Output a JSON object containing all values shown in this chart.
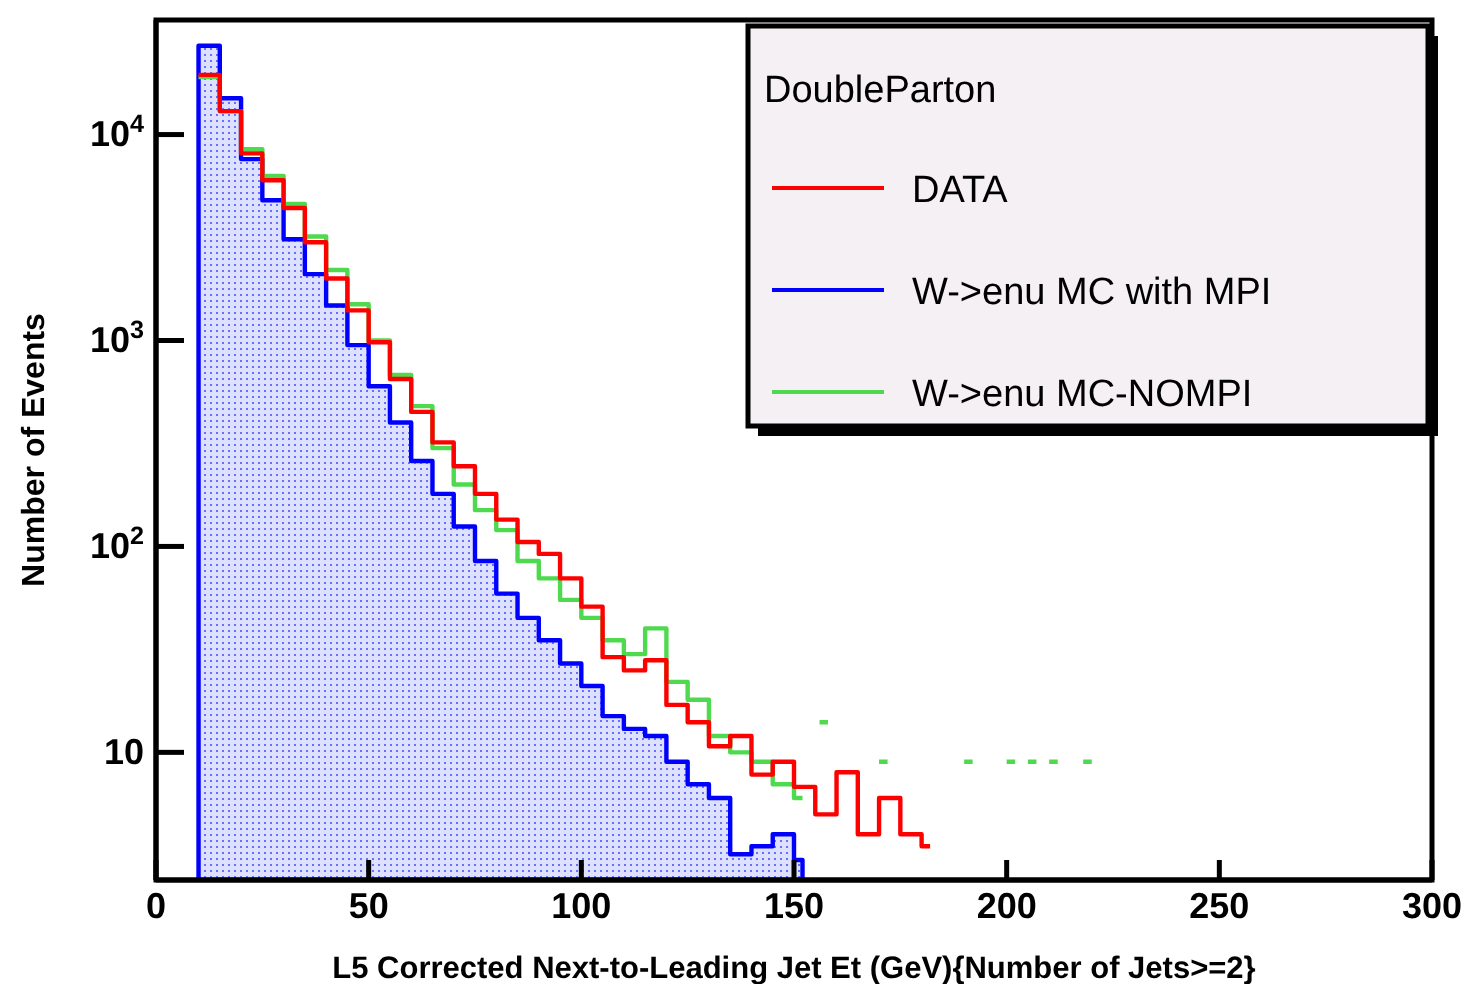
{
  "chart_data": {
    "type": "step",
    "xlabel": "L5 Corrected Next-to-Leading Jet Et (GeV){Number of Jets>=2}",
    "ylabel": "Number of Events",
    "legend_title": "DoubleParton",
    "log": "y",
    "xlim": [
      0,
      300
    ],
    "xticks": [
      0,
      50,
      100,
      150,
      200,
      250,
      300
    ],
    "ylim": [
      2.4,
      36000
    ],
    "yticks": [
      10,
      {
        "value": 100,
        "label": "10$^{2}$"
      },
      {
        "value": 1000,
        "label": "10$^{3}$"
      },
      {
        "value": 10000,
        "label": "10$^{4}$"
      }
    ],
    "legend": "top right",
    "grid": false,
    "series": [
      {
        "name": "DATA",
        "color": "#ff0000",
        "x": [
          10,
          15,
          20,
          25,
          30,
          35,
          40,
          45,
          50,
          55,
          60,
          65,
          70,
          75,
          80,
          85,
          90,
          95,
          100,
          105,
          110,
          115,
          120,
          125,
          130,
          135,
          140,
          145,
          150,
          155,
          160,
          165,
          170,
          175,
          180,
          182
        ],
        "values": [
          19500,
          13000,
          8100,
          6000,
          4400,
          3000,
          2000,
          1400,
          980,
          650,
          450,
          320,
          245,
          180,
          135,
          105,
          92,
          70,
          51,
          29,
          25,
          28,
          17,
          14,
          10.7,
          12,
          7.8,
          9,
          6.8,
          5,
          8,
          4,
          6,
          4,
          3.5,
          3.5
        ]
      },
      {
        "name": "W->enu MC with MPI",
        "color": "#0000ff",
        "type": "area",
        "x": [
          10,
          15,
          20,
          25,
          30,
          35,
          40,
          45,
          50,
          55,
          60,
          65,
          70,
          75,
          80,
          85,
          90,
          95,
          100,
          105,
          110,
          115,
          120,
          125,
          130,
          135,
          140,
          145,
          150,
          152
        ],
        "values": [
          27000,
          15000,
          7600,
          4800,
          3100,
          2100,
          1480,
          950,
          600,
          400,
          260,
          180,
          125,
          85,
          59,
          45,
          35,
          27,
          21,
          15,
          13,
          12,
          9,
          7,
          6,
          3.2,
          3.5,
          4,
          3,
          3
        ]
      },
      {
        "name": "W->enu MC-NOMPI",
        "color": "#4fd94f",
        "x": [
          10,
          15,
          20,
          25,
          30,
          35,
          40,
          45,
          50,
          55,
          60,
          65,
          70,
          75,
          80,
          85,
          90,
          95,
          100,
          105,
          110,
          115,
          120,
          125,
          130,
          135,
          140,
          145,
          150,
          152,
          154,
          156,
          158,
          160,
          170,
          172,
          174,
          190,
          192,
          194,
          200,
          202,
          203,
          205,
          207,
          208,
          210,
          212,
          214,
          218,
          220
        ],
        "values": [
          19000,
          13000,
          8500,
          6300,
          4600,
          3200,
          2200,
          1500,
          1000,
          680,
          480,
          300,
          200,
          150,
          120,
          85,
          70,
          55,
          45,
          35,
          30,
          40,
          22,
          18,
          12,
          10,
          9,
          7,
          6,
          6,
          null,
          14,
          14,
          null,
          9,
          9,
          null,
          9,
          9,
          null,
          9,
          9,
          null,
          9,
          9,
          null,
          9,
          9,
          null,
          9,
          9
        ]
      }
    ]
  }
}
